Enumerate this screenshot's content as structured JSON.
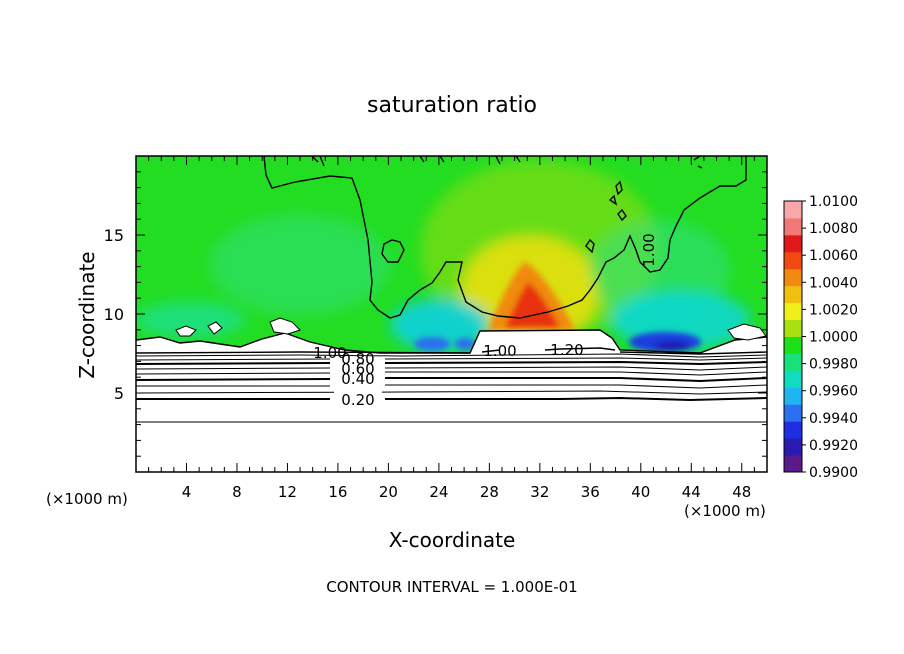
{
  "chart_data": {
    "type": "heatmap",
    "title": "saturation ratio",
    "xlabel": "X-coordinate",
    "ylabel": "Z-coordinate",
    "x_unit_left": "(×1000 m)",
    "x_unit_right": "(×1000 m)",
    "xlim": [
      0,
      50
    ],
    "ylim": [
      0,
      20
    ],
    "x_ticks": [
      4,
      8,
      12,
      16,
      20,
      24,
      28,
      32,
      36,
      40,
      44,
      48
    ],
    "y_ticks": [
      5,
      10,
      15
    ],
    "footer": "CONTOUR INTERVAL = 1.000E-01",
    "colorbar": {
      "min": 0.99,
      "max": 1.01,
      "ticks": [
        "1.0100",
        "1.0080",
        "1.0060",
        "1.0040",
        "1.0020",
        "1.0000",
        "0.9980",
        "0.9960",
        "0.9940",
        "0.9920",
        "0.9900"
      ],
      "colors": [
        "#5a1a8a",
        "#2a1ab0",
        "#1e2ee0",
        "#2a70f0",
        "#20b4f0",
        "#10dcc0",
        "#18e07a",
        "#1ee018",
        "#a8e010",
        "#f0f018",
        "#f0c010",
        "#f08a10",
        "#f04a10",
        "#e01818",
        "#f07878",
        "#f8a8a8"
      ]
    },
    "contours": [
      {
        "label": "0.20",
        "z": 4.85
      },
      {
        "label": "0.40",
        "z": 6.0
      },
      {
        "label": "0.60",
        "z": 6.55
      },
      {
        "label": "0.80",
        "z": 7.0
      },
      {
        "label": "1.00",
        "z": 7.25
      },
      {
        "label": "1.00",
        "z": 7.6
      },
      {
        "label": "1.20",
        "z": 7.6
      },
      {
        "label": "1.00",
        "z": 14.0
      }
    ],
    "features": {
      "moist_max": {
        "x": 30.5,
        "z": 9.8,
        "value": 1.007
      },
      "dry_min_right": {
        "x": 42.5,
        "z": 8.0,
        "value": 0.9915
      },
      "dry_min_left": {
        "x": 24.0,
        "z": 8.0,
        "value": 0.9945
      }
    }
  }
}
